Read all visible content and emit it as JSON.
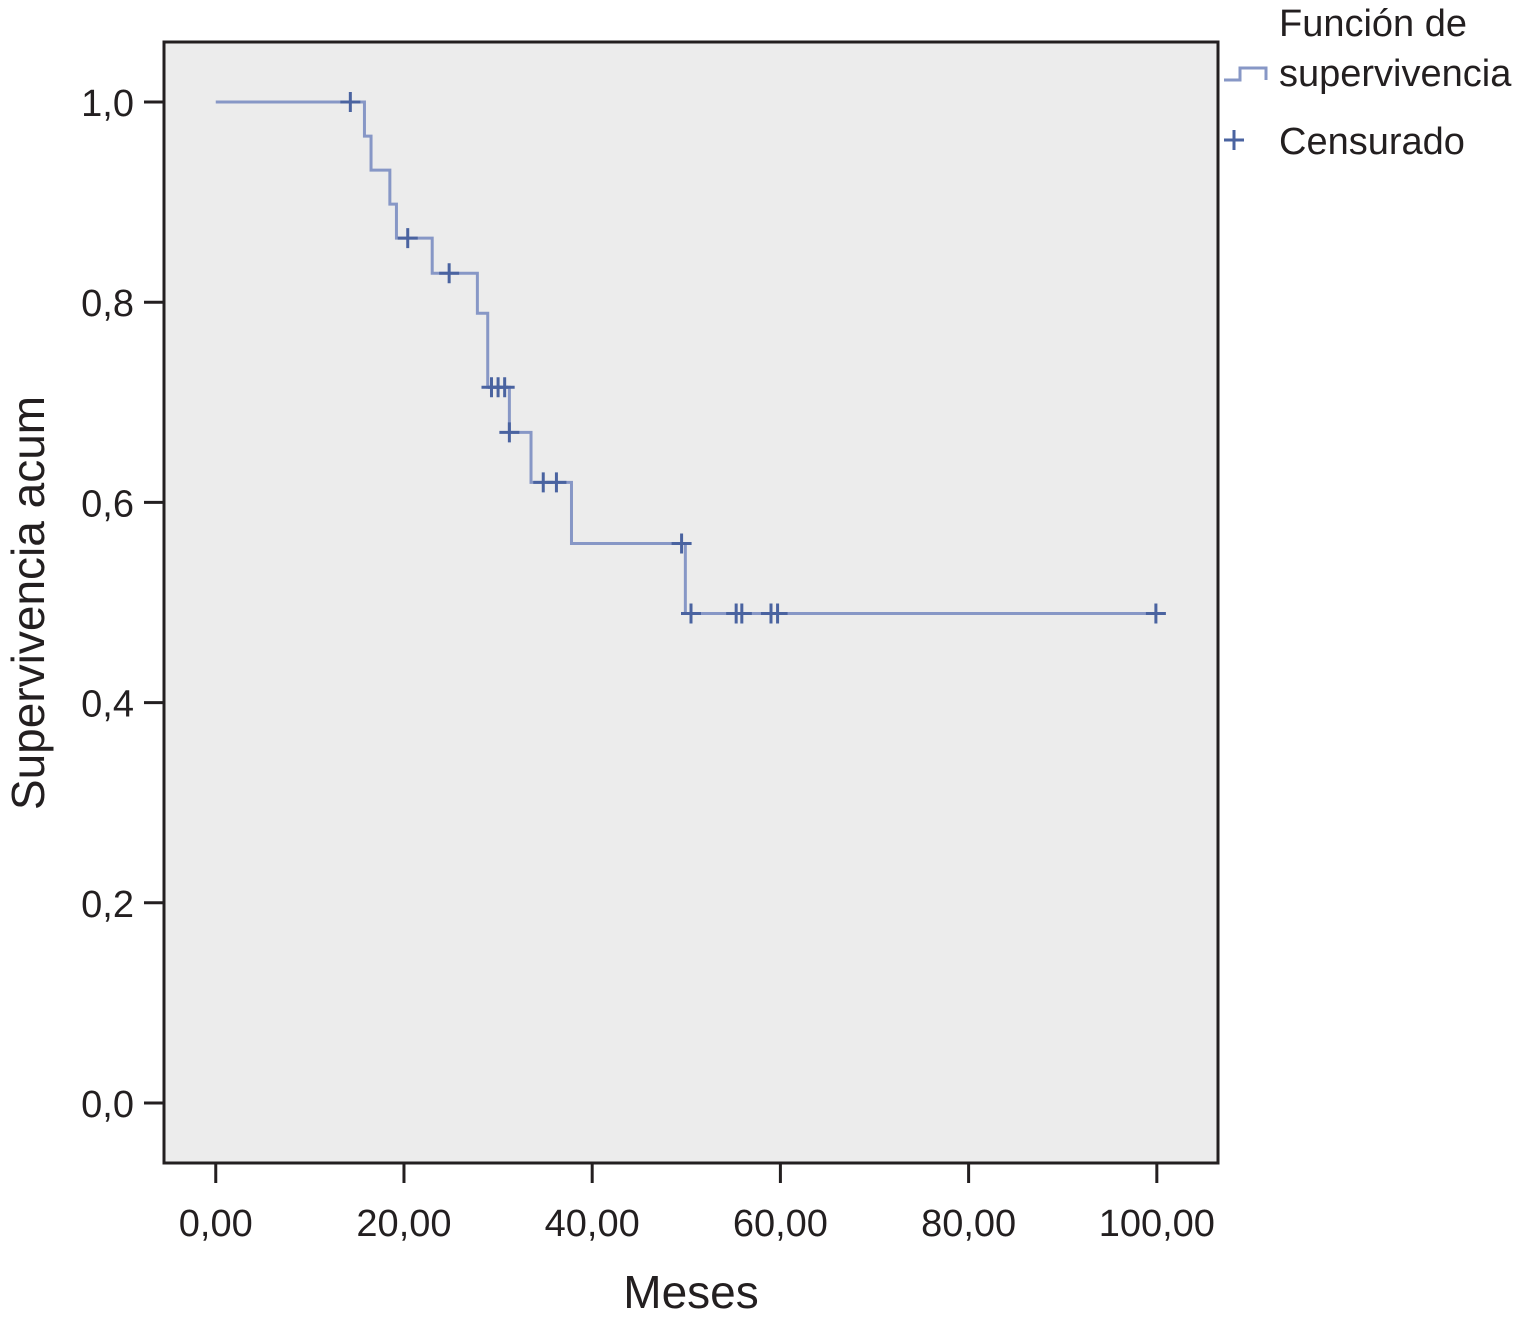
{
  "chart_data": {
    "type": "line",
    "xlabel": "Meses",
    "ylabel": "Supervivencia acum",
    "xlim": [
      -5.5,
      106.5
    ],
    "ylim": [
      -0.06,
      1.06
    ],
    "x_ticks": [
      0,
      20,
      40,
      60,
      80,
      100
    ],
    "x_tick_labels": [
      "0,00",
      "20,00",
      "40,00",
      "60,00",
      "80,00",
      "100,00"
    ],
    "y_ticks": [
      0.0,
      0.2,
      0.4,
      0.6,
      0.8,
      1.0
    ],
    "y_tick_labels": [
      "0,0",
      "0,2",
      "0,4",
      "0,6",
      "0,8",
      "1,0"
    ],
    "grid": false,
    "plot_background": "#ececec",
    "line_color": "#8797c6",
    "marker_color": "#4a63a0",
    "legend": {
      "placement": "outside-top-right",
      "entries": [
        {
          "label_lines": [
            "Función de",
            "supervivencia"
          ],
          "symbol": "step-line"
        },
        {
          "label_lines": [
            "Censurado"
          ],
          "symbol": "plus"
        }
      ]
    },
    "series": [
      {
        "kind": "survival-step",
        "steps": [
          {
            "x": 0,
            "y": 1.0
          },
          {
            "x": 15.8,
            "y": 0.966
          },
          {
            "x": 16.5,
            "y": 0.932
          },
          {
            "x": 18.5,
            "y": 0.898
          },
          {
            "x": 19.2,
            "y": 0.864
          },
          {
            "x": 23.0,
            "y": 0.829
          },
          {
            "x": 27.8,
            "y": 0.789
          },
          {
            "x": 28.9,
            "y": 0.715
          },
          {
            "x": 31.2,
            "y": 0.67
          },
          {
            "x": 33.5,
            "y": 0.62
          },
          {
            "x": 37.8,
            "y": 0.559
          },
          {
            "x": 49.9,
            "y": 0.489
          },
          {
            "x": 100.0,
            "y": 0.489
          }
        ],
        "censored": [
          {
            "x": 14.3,
            "y": 1.0
          },
          {
            "x": 20.4,
            "y": 0.864
          },
          {
            "x": 24.8,
            "y": 0.829
          },
          {
            "x": 29.3,
            "y": 0.715
          },
          {
            "x": 30.0,
            "y": 0.715
          },
          {
            "x": 30.7,
            "y": 0.715
          },
          {
            "x": 31.2,
            "y": 0.67
          },
          {
            "x": 34.8,
            "y": 0.62
          },
          {
            "x": 36.2,
            "y": 0.62
          },
          {
            "x": 49.5,
            "y": 0.559
          },
          {
            "x": 50.5,
            "y": 0.489
          },
          {
            "x": 55.3,
            "y": 0.489
          },
          {
            "x": 55.9,
            "y": 0.489
          },
          {
            "x": 59.0,
            "y": 0.489
          },
          {
            "x": 59.7,
            "y": 0.489
          },
          {
            "x": 99.9,
            "y": 0.489
          }
        ]
      }
    ]
  }
}
